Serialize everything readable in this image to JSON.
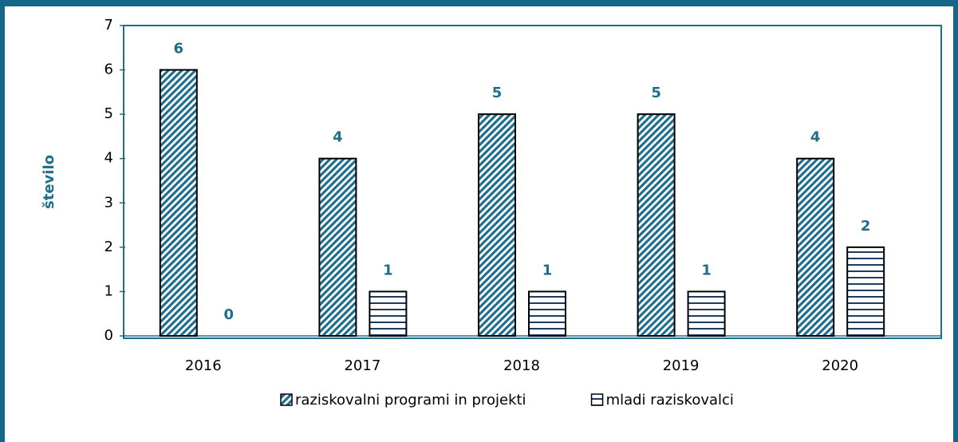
{
  "chart_data": {
    "type": "bar",
    "y_label": "število",
    "categories": [
      "2016",
      "2017",
      "2018",
      "2019",
      "2020"
    ],
    "series": [
      {
        "name": "raziskovalni programi in projekti",
        "color": "#1f6e8c",
        "values": [
          6,
          4,
          5,
          5,
          4
        ]
      },
      {
        "name": "mladi raziskovalci",
        "color": "#1f3a5f",
        "values": [
          0,
          1,
          1,
          1,
          2
        ]
      }
    ],
    "ylim": [
      0,
      7
    ],
    "yticks": [
      0,
      1,
      2,
      3,
      4,
      5,
      6,
      7
    ],
    "legend": "bottom"
  }
}
